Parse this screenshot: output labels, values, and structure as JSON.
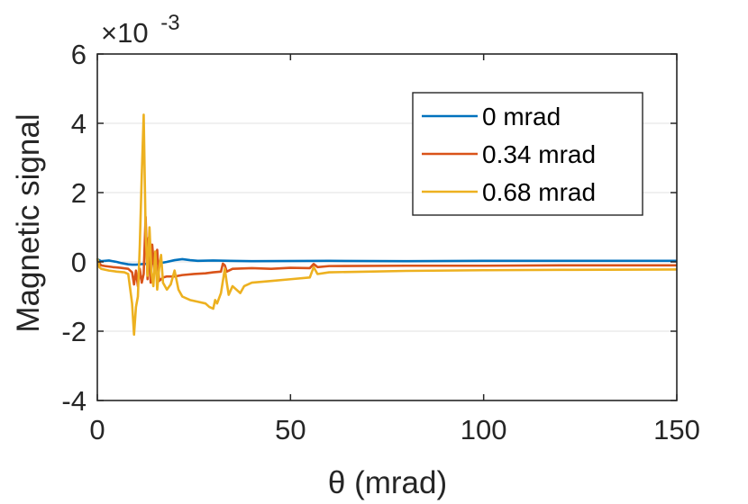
{
  "chart_data": {
    "type": "line",
    "title": "",
    "xlabel": "θ (mrad)",
    "ylabel": "Magnetic signal",
    "xlim": [
      0,
      150
    ],
    "ylim": [
      -4,
      6
    ],
    "x_ticks": [
      0,
      50,
      100,
      150
    ],
    "y_ticks": [
      -4,
      -2,
      0,
      2,
      4,
      6
    ],
    "x_tick_labels": [
      "0",
      "50",
      "100",
      "150"
    ],
    "y_tick_labels": [
      "-4",
      "-2",
      "0",
      "2",
      "4",
      "6"
    ],
    "y_multiplier": "×10",
    "y_multiplier_exponent": "-3",
    "grid": "horizontal",
    "legend_position": "top-right",
    "series": [
      {
        "name": "0 mrad",
        "color": "#0072BD",
        "points": [
          [
            0,
            0.08
          ],
          [
            1,
            0.02
          ],
          [
            2,
            0.03
          ],
          [
            3,
            0.04
          ],
          [
            4,
            0.02
          ],
          [
            5,
            0.0
          ],
          [
            6,
            -0.03
          ],
          [
            7,
            -0.05
          ],
          [
            8,
            -0.07
          ],
          [
            9,
            -0.08
          ],
          [
            10,
            -0.08
          ],
          [
            11,
            -0.07
          ],
          [
            12,
            -0.06
          ],
          [
            14,
            -0.05
          ],
          [
            16,
            -0.04
          ],
          [
            18,
            0.0
          ],
          [
            20,
            0.05
          ],
          [
            22,
            0.08
          ],
          [
            24,
            0.05
          ],
          [
            26,
            0.03
          ],
          [
            30,
            0.04
          ],
          [
            40,
            0.02
          ],
          [
            60,
            0.03
          ],
          [
            80,
            0.02
          ],
          [
            100,
            0.03
          ],
          [
            120,
            0.03
          ],
          [
            150,
            0.03
          ]
        ]
      },
      {
        "name": "0.34 mrad",
        "color": "#D95319",
        "points": [
          [
            0,
            0.05
          ],
          [
            1,
            -0.1
          ],
          [
            2,
            -0.12
          ],
          [
            4,
            -0.15
          ],
          [
            6,
            -0.17
          ],
          [
            8,
            -0.2
          ],
          [
            9,
            -0.3
          ],
          [
            9.5,
            -0.65
          ],
          [
            10,
            -0.25
          ],
          [
            10.5,
            -0.7
          ],
          [
            11,
            -0.2
          ],
          [
            11.5,
            -0.6
          ],
          [
            12,
            -0.35
          ],
          [
            12.5,
            1.3
          ],
          [
            13,
            -0.5
          ],
          [
            13.3,
            0.7
          ],
          [
            13.8,
            -0.6
          ],
          [
            14.2,
            0.5
          ],
          [
            14.8,
            -0.3
          ],
          [
            15.5,
            0.35
          ],
          [
            16,
            -0.55
          ],
          [
            17,
            -0.45
          ],
          [
            18,
            -0.42
          ],
          [
            20,
            -0.42
          ],
          [
            22,
            -0.38
          ],
          [
            25,
            -0.35
          ],
          [
            28,
            -0.33
          ],
          [
            30,
            -0.3
          ],
          [
            32,
            -0.28
          ],
          [
            32.5,
            -0.05
          ],
          [
            33,
            -0.1
          ],
          [
            33.5,
            -0.28
          ],
          [
            35,
            -0.2
          ],
          [
            40,
            -0.18
          ],
          [
            45,
            -0.2
          ],
          [
            50,
            -0.17
          ],
          [
            55,
            -0.18
          ],
          [
            56,
            -0.06
          ],
          [
            57,
            -0.15
          ],
          [
            60,
            -0.12
          ],
          [
            80,
            -0.11
          ],
          [
            100,
            -0.11
          ],
          [
            120,
            -0.1
          ],
          [
            150,
            -0.1
          ]
        ]
      },
      {
        "name": "0.68 mrad",
        "color": "#EDB120",
        "points": [
          [
            0,
            0.1
          ],
          [
            0.5,
            -0.15
          ],
          [
            1,
            -0.2
          ],
          [
            3,
            -0.25
          ],
          [
            5,
            -0.28
          ],
          [
            7,
            -0.3
          ],
          [
            8,
            -0.35
          ],
          [
            9,
            -1.2
          ],
          [
            9.5,
            -2.1
          ],
          [
            10,
            -1.3
          ],
          [
            10.5,
            -1.0
          ],
          [
            11,
            0.5
          ],
          [
            11.5,
            2.5
          ],
          [
            12,
            4.25
          ],
          [
            12.5,
            0.9
          ],
          [
            13,
            -0.4
          ],
          [
            13.5,
            1.0
          ],
          [
            14,
            -0.3
          ],
          [
            14.5,
            -0.7
          ],
          [
            15,
            0.3
          ],
          [
            15.5,
            -0.8
          ],
          [
            16,
            -0.2
          ],
          [
            16.5,
            0.2
          ],
          [
            17,
            -0.6
          ],
          [
            18,
            -0.8
          ],
          [
            19,
            -0.65
          ],
          [
            20,
            -0.25
          ],
          [
            21,
            -0.8
          ],
          [
            22,
            -1.0
          ],
          [
            24,
            -1.1
          ],
          [
            26,
            -1.15
          ],
          [
            28,
            -1.2
          ],
          [
            29,
            -1.3
          ],
          [
            30,
            -1.35
          ],
          [
            30.5,
            -1.1
          ],
          [
            31,
            -1.2
          ],
          [
            32,
            -0.9
          ],
          [
            33,
            -0.2
          ],
          [
            33.5,
            -0.6
          ],
          [
            34,
            -0.95
          ],
          [
            35,
            -0.7
          ],
          [
            36,
            -0.8
          ],
          [
            37,
            -0.9
          ],
          [
            38,
            -0.7
          ],
          [
            40,
            -0.6
          ],
          [
            45,
            -0.55
          ],
          [
            50,
            -0.5
          ],
          [
            55,
            -0.45
          ],
          [
            56,
            -0.15
          ],
          [
            57,
            -0.35
          ],
          [
            60,
            -0.3
          ],
          [
            70,
            -0.28
          ],
          [
            80,
            -0.26
          ],
          [
            100,
            -0.24
          ],
          [
            120,
            -0.23
          ],
          [
            150,
            -0.22
          ]
        ]
      }
    ]
  }
}
